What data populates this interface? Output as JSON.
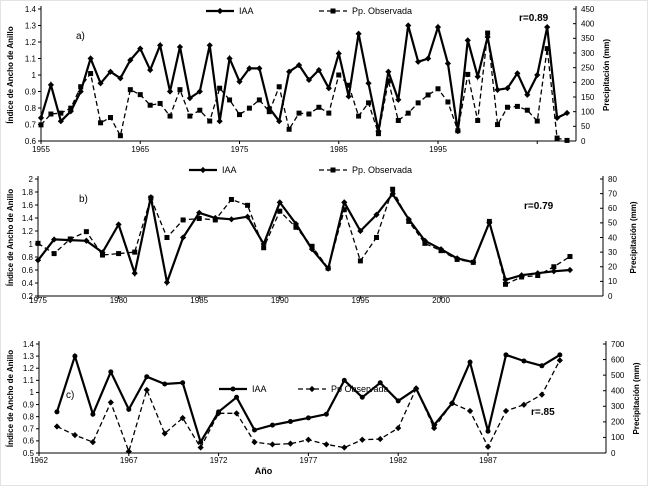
{
  "figure": {
    "background": "#ffffff",
    "line_color": "#000000",
    "description": "Three stacked line charts comparing tree ring width index (IAA) with observed precipitation"
  },
  "chart_data": [
    {
      "id": "a",
      "type": "line",
      "panel_label": "a)",
      "r_label": "r=0.89",
      "legend_entries": [
        "IAA",
        "Pp. Observada"
      ],
      "y_left": {
        "label": "Índice de Ancho de Anillo",
        "min": 0.6,
        "max": 1.4,
        "step": 0.1
      },
      "y_right": {
        "label": "Precipitación (mm)",
        "min": 0,
        "max": 450,
        "step": 50
      },
      "x_ticks": [
        1955,
        1965,
        1975,
        1985,
        1995
      ],
      "x_label": "",
      "x_start": 1955,
      "grid": false,
      "series": [
        {
          "name": "IAA",
          "axis": "left",
          "style": "solid",
          "marker": "diamond",
          "values": [
            0.74,
            0.94,
            0.72,
            0.78,
            0.9,
            1.1,
            0.95,
            1.02,
            0.98,
            1.09,
            1.16,
            1.03,
            1.18,
            0.9,
            1.17,
            0.86,
            0.9,
            1.18,
            0.72,
            1.1,
            0.96,
            1.04,
            1.04,
            0.8,
            0.72,
            1.02,
            1.06,
            0.97,
            1.03,
            0.92,
            1.13,
            0.87,
            1.25,
            0.95,
            0.66,
            1.02,
            0.85,
            1.3,
            1.08,
            1.1,
            1.29,
            1.07,
            0.66,
            1.21,
            0.99,
            1.23,
            0.91,
            0.92,
            1.01,
            0.88,
            1.0,
            1.29,
            0.74,
            0.77
          ]
        },
        {
          "name": "Pp. Observada",
          "axis": "right",
          "style": "dashed",
          "marker": "square",
          "values": [
            55,
            92,
            95,
            112,
            185,
            230,
            62,
            80,
            18,
            175,
            158,
            122,
            128,
            85,
            175,
            85,
            105,
            68,
            180,
            140,
            90,
            112,
            140,
            100,
            185,
            40,
            95,
            92,
            115,
            95,
            225,
            190,
            85,
            130,
            25,
            205,
            70,
            95,
            130,
            157,
            178,
            133,
            35,
            227,
            70,
            368,
            56,
            115,
            118,
            105,
            68,
            315,
            10,
            2
          ]
        }
      ]
    },
    {
      "id": "b",
      "type": "line",
      "panel_label": "b)",
      "r_label": "r=0.79",
      "legend_entries": [
        "IAA",
        "Pp. Observada"
      ],
      "y_left": {
        "label": "Índice de Ancho de Anillo",
        "min": 0.2,
        "max": 2.0,
        "step": 0.2
      },
      "y_right": {
        "label": "Precipitación  (mm)",
        "min": 0,
        "max": 80,
        "step": 10
      },
      "x_ticks": [
        1975,
        1980,
        1985,
        1990,
        1995,
        2000
      ],
      "x_label": "",
      "x_start": 1975,
      "grid": false,
      "series": [
        {
          "name": "IAA",
          "axis": "left",
          "style": "solid",
          "marker": "diamond",
          "values": [
            0.75,
            1.07,
            1.06,
            1.05,
            0.87,
            1.3,
            0.55,
            1.72,
            0.41,
            1.1,
            1.48,
            1.4,
            1.38,
            1.42,
            1.0,
            1.64,
            1.31,
            0.92,
            0.62,
            1.64,
            1.2,
            1.45,
            1.77,
            1.38,
            1.05,
            0.92,
            0.78,
            0.72,
            1.33,
            0.45,
            0.52,
            0.55,
            0.58,
            0.6
          ]
        },
        {
          "name": "Pp. Observada",
          "axis": "right",
          "style": "dashed",
          "marker": "square",
          "values": [
            36,
            29,
            39,
            44,
            28,
            29,
            30,
            67,
            40,
            52,
            53,
            52,
            66,
            62,
            33,
            58,
            47,
            34,
            19,
            59,
            24,
            40,
            73,
            51,
            36,
            31,
            25,
            23,
            51,
            8,
            13,
            14,
            20,
            27
          ]
        }
      ]
    },
    {
      "id": "c",
      "type": "line",
      "panel_label": "c)",
      "r_label": "r=.85",
      "legend_entries": [
        "IAA",
        "Pp Observada"
      ],
      "y_left": {
        "label": "Índice de Ancho de Anillo",
        "min": 0.5,
        "max": 1.4,
        "step": 0.1
      },
      "y_right": {
        "label": "Precipitación (mm)",
        "min": 0,
        "max": 700,
        "step": 100
      },
      "x_ticks": [
        1962,
        1967,
        1972,
        1977,
        1982,
        1987
      ],
      "x_label": "Año",
      "x_start": 1963,
      "grid": false,
      "series": [
        {
          "name": "IAA",
          "axis": "left",
          "style": "solid",
          "marker": "circle",
          "values": [
            0.84,
            1.3,
            0.82,
            1.17,
            0.86,
            1.13,
            1.07,
            1.08,
            0.59,
            0.84,
            0.96,
            0.69,
            0.73,
            0.76,
            0.79,
            0.82,
            1.1,
            0.96,
            1.08,
            0.93,
            1.03,
            0.73,
            0.91,
            1.25,
            0.68,
            1.31,
            1.26,
            1.22,
            1.31
          ]
        },
        {
          "name": "Pp Observada",
          "axis": "right",
          "style": "dashed",
          "marker": "diamond",
          "values": [
            170,
            115,
            70,
            325,
            10,
            405,
            125,
            225,
            35,
            255,
            255,
            70,
            55,
            60,
            85,
            55,
            35,
            85,
            90,
            160,
            415,
            160,
            320,
            270,
            40,
            270,
            310,
            375,
            595
          ]
        }
      ]
    }
  ]
}
